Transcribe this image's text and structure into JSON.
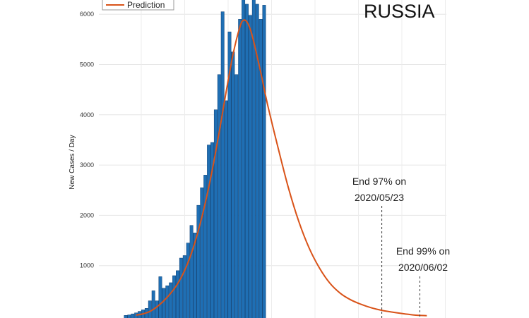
{
  "chart_data": {
    "type": "bar",
    "title": "RUSSIA",
    "ylabel": "New Cases / Day",
    "xlabel": "",
    "ylim": [
      0,
      6500
    ],
    "yticks": [
      1000,
      2000,
      3000,
      4000,
      5000,
      6000
    ],
    "grid": true,
    "legend": {
      "placement": "top-left",
      "entries": [
        "Prediction"
      ]
    },
    "series": [
      {
        "type": "bar",
        "x": [
          1,
          2,
          3,
          4,
          5,
          6,
          7,
          8,
          9,
          10,
          11,
          12,
          13,
          14,
          15,
          16,
          17,
          18,
          19,
          20,
          21,
          22,
          23,
          24,
          25,
          26,
          27,
          28,
          29,
          30,
          31,
          32,
          33,
          34,
          35,
          36,
          37,
          38,
          39,
          40,
          41
        ],
        "values": [
          10,
          20,
          40,
          60,
          90,
          120,
          150,
          300,
          500,
          300,
          780,
          550,
          600,
          660,
          800,
          900,
          1150,
          1200,
          1450,
          1800,
          1650,
          2200,
          2550,
          2800,
          3400,
          3450,
          4100,
          4800,
          6050,
          4280,
          5650,
          5250,
          4800,
          5900,
          6350,
          6200,
          5980,
          6350,
          6200,
          5900,
          6180
        ]
      },
      {
        "name": "Prediction",
        "type": "line",
        "color": "#d95319",
        "x": [
          4,
          6,
          8,
          10,
          12,
          14,
          16,
          18,
          20,
          22,
          24,
          26,
          28,
          30,
          32,
          34,
          35,
          36,
          37,
          38,
          40,
          42,
          45,
          48,
          51,
          54,
          57,
          60,
          63,
          66,
          69,
          72,
          75,
          78,
          81,
          84,
          86,
          88
        ],
        "y": [
          15,
          40,
          90,
          180,
          300,
          450,
          640,
          900,
          1250,
          1700,
          2250,
          2900,
          3650,
          4450,
          5200,
          5750,
          5880,
          5850,
          5700,
          5450,
          4850,
          4200,
          3350,
          2550,
          1880,
          1350,
          950,
          650,
          450,
          320,
          230,
          160,
          110,
          75,
          45,
          20,
          10,
          4
        ]
      }
    ],
    "annotations": [
      {
        "line1": "End 97% on",
        "line2": "2020/05/23",
        "x": 75
      },
      {
        "line1": "End 99% on",
        "line2": "2020/06/02",
        "x": 86
      }
    ]
  }
}
